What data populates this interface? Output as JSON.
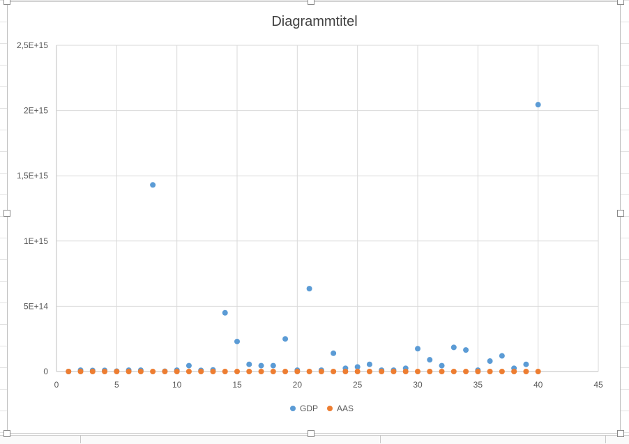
{
  "colors": {
    "gdp": "#5b9bd5",
    "aas": "#ed7d31",
    "grid": "#d9d9d9",
    "axis": "#bfbfbf",
    "text": "#595959",
    "title": "#404040"
  },
  "chart_data": {
    "type": "scatter",
    "title": "Diagrammtitel",
    "xlabel": "",
    "ylabel": "",
    "xlim": [
      0,
      45
    ],
    "ylim": [
      0,
      2500000000000000
    ],
    "x_ticks": [
      0,
      5,
      10,
      15,
      20,
      25,
      30,
      35,
      40,
      45
    ],
    "x_tick_labels": [
      "0",
      "5",
      "10",
      "15",
      "20",
      "25",
      "30",
      "35",
      "40",
      "45"
    ],
    "y_ticks": [
      0,
      500000000000000,
      1000000000000000,
      1500000000000000,
      2000000000000000,
      2500000000000000
    ],
    "y_tick_labels": [
      "0",
      "5E+14",
      "1E+15",
      "1,5E+15",
      "2E+15",
      "2,5E+15"
    ],
    "grid": true,
    "legend_position": "bottom",
    "series": [
      {
        "name": "GDP",
        "color_key": "gdp",
        "points": [
          [
            1,
            0
          ],
          [
            2,
            10000000000000
          ],
          [
            3,
            8000000000000
          ],
          [
            4,
            9000000000000
          ],
          [
            5,
            3000000000000
          ],
          [
            6,
            10000000000000
          ],
          [
            7,
            10000000000000
          ],
          [
            8,
            1430000000000000
          ],
          [
            9,
            2000000000000
          ],
          [
            10,
            10000000000000
          ],
          [
            11,
            45000000000000
          ],
          [
            12,
            9000000000000
          ],
          [
            13,
            12000000000000
          ],
          [
            14,
            450000000000000
          ],
          [
            15,
            230000000000000
          ],
          [
            16,
            55000000000000
          ],
          [
            17,
            45000000000000
          ],
          [
            18,
            45000000000000
          ],
          [
            19,
            250000000000000
          ],
          [
            20,
            10000000000000
          ],
          [
            21,
            635000000000000
          ],
          [
            22,
            10000000000000
          ],
          [
            23,
            140000000000000
          ],
          [
            24,
            25000000000000
          ],
          [
            25,
            35000000000000
          ],
          [
            26,
            55000000000000
          ],
          [
            27,
            10000000000000
          ],
          [
            28,
            10000000000000
          ],
          [
            29,
            25000000000000
          ],
          [
            30,
            175000000000000
          ],
          [
            31,
            90000000000000
          ],
          [
            32,
            45000000000000
          ],
          [
            33,
            185000000000000
          ],
          [
            34,
            165000000000000
          ],
          [
            35,
            10000000000000
          ],
          [
            36,
            80000000000000
          ],
          [
            37,
            120000000000000
          ],
          [
            38,
            25000000000000
          ],
          [
            39,
            55000000000000
          ],
          [
            40,
            2045000000000000
          ]
        ]
      },
      {
        "name": "AAS",
        "color_key": "aas",
        "points": [
          [
            1,
            0
          ],
          [
            2,
            0
          ],
          [
            3,
            0
          ],
          [
            4,
            0
          ],
          [
            5,
            0
          ],
          [
            6,
            0
          ],
          [
            7,
            0
          ],
          [
            8,
            0
          ],
          [
            9,
            0
          ],
          [
            10,
            0
          ],
          [
            11,
            0
          ],
          [
            12,
            0
          ],
          [
            13,
            0
          ],
          [
            14,
            0
          ],
          [
            15,
            0
          ],
          [
            16,
            0
          ],
          [
            17,
            0
          ],
          [
            18,
            0
          ],
          [
            19,
            0
          ],
          [
            20,
            0
          ],
          [
            21,
            0
          ],
          [
            22,
            0
          ],
          [
            23,
            0
          ],
          [
            24,
            0
          ],
          [
            25,
            0
          ],
          [
            26,
            0
          ],
          [
            27,
            0
          ],
          [
            28,
            0
          ],
          [
            29,
            0
          ],
          [
            30,
            0
          ],
          [
            31,
            0
          ],
          [
            32,
            0
          ],
          [
            33,
            0
          ],
          [
            34,
            0
          ],
          [
            35,
            0
          ],
          [
            36,
            0
          ],
          [
            37,
            0
          ],
          [
            38,
            0
          ],
          [
            39,
            0
          ],
          [
            40,
            0
          ]
        ]
      }
    ]
  }
}
